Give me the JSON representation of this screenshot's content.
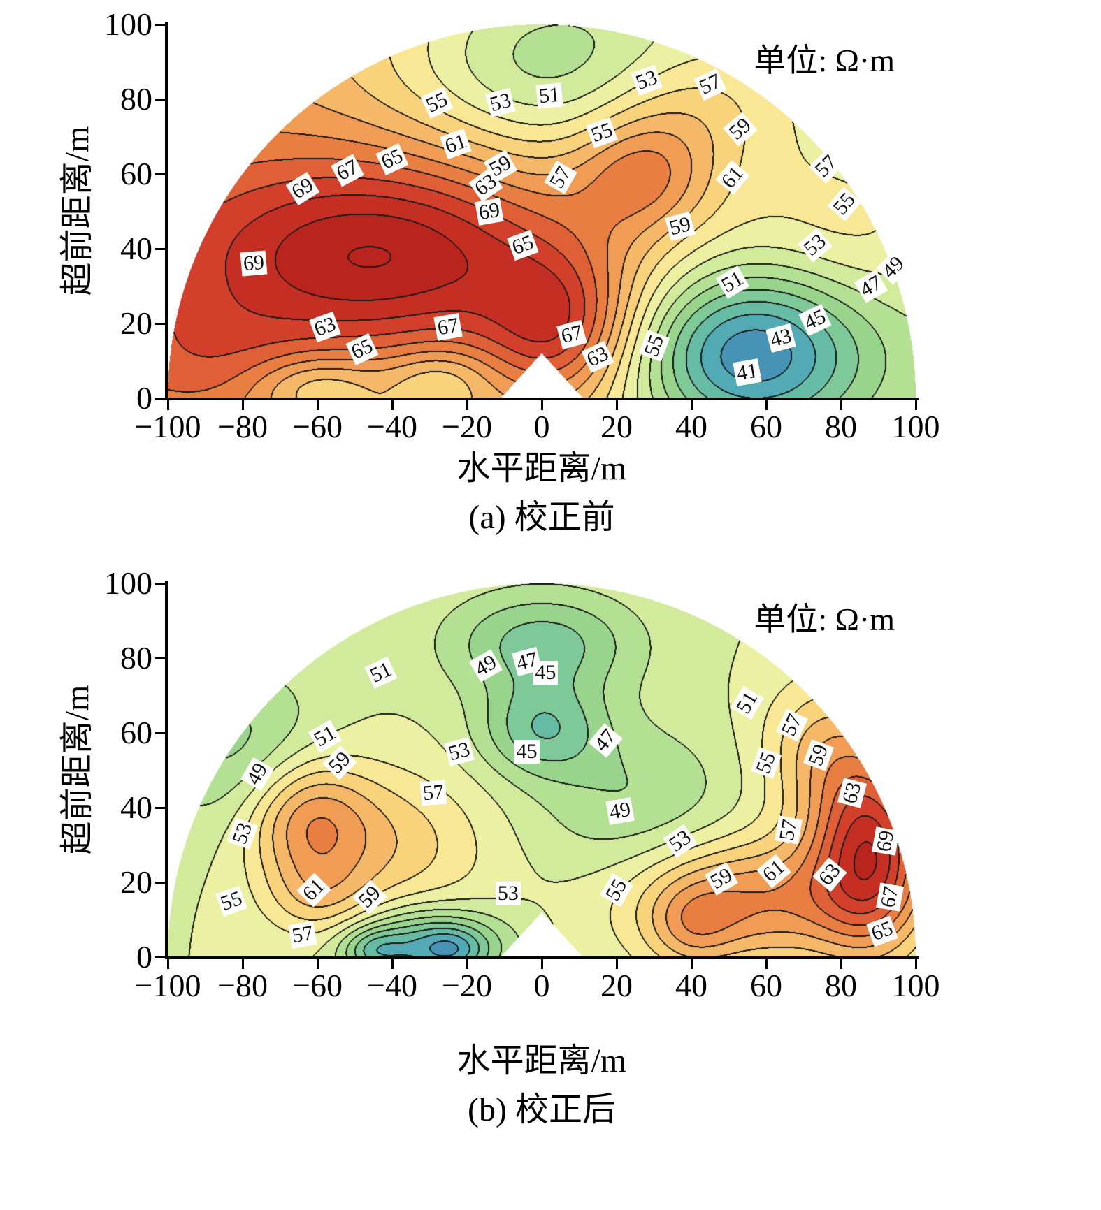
{
  "chart_data": [
    {
      "type": "heatmap",
      "subtype": "filled_contour_semicircle",
      "title": "(a) 校正前",
      "unit_label": "单位: Ω·m",
      "xlabel": "水平距离/m",
      "ylabel": "超前距离/m",
      "xlim": [
        -100,
        100
      ],
      "ylim": [
        0,
        100
      ],
      "x_ticks": [
        {
          "v": -100,
          "label": "−100"
        },
        {
          "v": -80,
          "label": "−80"
        },
        {
          "v": -60,
          "label": "−60"
        },
        {
          "v": -40,
          "label": "−40"
        },
        {
          "v": -20,
          "label": "−20"
        },
        {
          "v": 0,
          "label": "0"
        },
        {
          "v": 20,
          "label": "20"
        },
        {
          "v": 40,
          "label": "40"
        },
        {
          "v": 60,
          "label": "60"
        },
        {
          "v": 80,
          "label": "80"
        },
        {
          "v": 100,
          "label": "100"
        }
      ],
      "y_ticks": [
        {
          "v": 0,
          "label": "0"
        },
        {
          "v": 20,
          "label": "20"
        },
        {
          "v": 40,
          "label": "40"
        },
        {
          "v": 60,
          "label": "60"
        },
        {
          "v": 80,
          "label": "80"
        },
        {
          "v": 100,
          "label": "100"
        }
      ],
      "domain": {
        "shape": "semicircle",
        "radius": 100,
        "notch": {
          "half_width": 11,
          "height": 12
        }
      },
      "contour_interval": 2,
      "value_range": [
        37,
        75
      ],
      "line_color": "#1a1a1a",
      "field": {
        "base": 57,
        "xslope": -0.05,
        "gaussians": [
          [
            -40,
            38,
            40,
            20,
            14
          ],
          [
            0,
            90,
            28,
            18,
            -7
          ],
          [
            27,
            60,
            13,
            11,
            7
          ],
          [
            55,
            12,
            22,
            16,
            -15
          ],
          [
            -60,
            3,
            12,
            6,
            -5
          ],
          [
            -28,
            5,
            10,
            6,
            -4
          ],
          [
            40,
            78,
            18,
            12,
            4
          ],
          [
            -90,
            10,
            18,
            12,
            3
          ],
          [
            85,
            45,
            20,
            15,
            3
          ],
          [
            5,
            18,
            14,
            14,
            9
          ]
        ]
      },
      "colormap": [
        [
          38,
          "#3b7cb8"
        ],
        [
          42,
          "#52aab4"
        ],
        [
          44,
          "#66bba4"
        ],
        [
          46,
          "#7fc897"
        ],
        [
          48,
          "#98d48c"
        ],
        [
          50,
          "#b3e092"
        ],
        [
          52,
          "#d2ea9b"
        ],
        [
          54,
          "#ecf0a2"
        ],
        [
          56,
          "#f8e795"
        ],
        [
          58,
          "#f8d37c"
        ],
        [
          60,
          "#f5b868"
        ],
        [
          62,
          "#f09c54"
        ],
        [
          64,
          "#e97e43"
        ],
        [
          66,
          "#df5f36"
        ],
        [
          68,
          "#d2402b"
        ],
        [
          70,
          "#c52e22"
        ],
        [
          72,
          "#b9241c"
        ]
      ],
      "contour_labels": [
        {
          "v": 55,
          "x": -28,
          "y": 79,
          "rot": -25
        },
        {
          "v": 53,
          "x": -11,
          "y": 79,
          "rot": -15
        },
        {
          "v": 51,
          "x": 2,
          "y": 81,
          "rot": -5
        },
        {
          "v": 53,
          "x": 28,
          "y": 85,
          "rot": -20
        },
        {
          "v": 57,
          "x": 45,
          "y": 84,
          "rot": -25
        },
        {
          "v": 55,
          "x": 16,
          "y": 71,
          "rot": -20
        },
        {
          "v": 59,
          "x": 53,
          "y": 72,
          "rot": -40
        },
        {
          "v": 57,
          "x": 76,
          "y": 62,
          "rot": -45
        },
        {
          "v": 55,
          "x": 81,
          "y": 52,
          "rot": -50
        },
        {
          "v": 61,
          "x": -23,
          "y": 68,
          "rot": -20
        },
        {
          "v": 65,
          "x": -40,
          "y": 64,
          "rot": -25
        },
        {
          "v": 67,
          "x": -52,
          "y": 61,
          "rot": -28
        },
        {
          "v": 69,
          "x": -64,
          "y": 56,
          "rot": -32
        },
        {
          "v": 59,
          "x": -11,
          "y": 62,
          "rot": -30
        },
        {
          "v": 63,
          "x": -15,
          "y": 57,
          "rot": -35
        },
        {
          "v": 57,
          "x": 5,
          "y": 59,
          "rot": -60
        },
        {
          "v": 61,
          "x": 51,
          "y": 59,
          "rot": -50
        },
        {
          "v": 59,
          "x": 37,
          "y": 46,
          "rot": -15
        },
        {
          "v": 53,
          "x": 73,
          "y": 41,
          "rot": -40
        },
        {
          "v": 49,
          "x": 94,
          "y": 35,
          "rot": -45
        },
        {
          "v": 47,
          "x": 88,
          "y": 30,
          "rot": -30
        },
        {
          "v": 69,
          "x": -14,
          "y": 50,
          "rot": -10
        },
        {
          "v": 65,
          "x": -5,
          "y": 41,
          "rot": -20
        },
        {
          "v": 69,
          "x": -77,
          "y": 36,
          "rot": -5
        },
        {
          "v": 51,
          "x": 51,
          "y": 31,
          "rot": -30
        },
        {
          "v": 45,
          "x": 73,
          "y": 21,
          "rot": -25
        },
        {
          "v": 43,
          "x": 64,
          "y": 16,
          "rot": -15
        },
        {
          "v": 41,
          "x": 55,
          "y": 7,
          "rot": -10
        },
        {
          "v": 67,
          "x": -25,
          "y": 19,
          "rot": -10
        },
        {
          "v": 65,
          "x": -48,
          "y": 13,
          "rot": -25
        },
        {
          "v": 63,
          "x": -58,
          "y": 19,
          "rot": -20
        },
        {
          "v": 67,
          "x": 8,
          "y": 17,
          "rot": -15
        },
        {
          "v": 63,
          "x": 15,
          "y": 11,
          "rot": -25
        },
        {
          "v": 55,
          "x": 30,
          "y": 14,
          "rot": -70
        }
      ]
    },
    {
      "type": "heatmap",
      "subtype": "filled_contour_semicircle",
      "title": "(b) 校正后",
      "unit_label": "单位: Ω·m",
      "xlabel": "水平距离/m",
      "ylabel": "超前距离/m",
      "xlim": [
        -100,
        100
      ],
      "ylim": [
        0,
        100
      ],
      "x_ticks": [
        {
          "v": -100,
          "label": "−100"
        },
        {
          "v": -80,
          "label": "−80"
        },
        {
          "v": -60,
          "label": "−60"
        },
        {
          "v": -40,
          "label": "−40"
        },
        {
          "v": -20,
          "label": "−20"
        },
        {
          "v": 0,
          "label": "0"
        },
        {
          "v": 20,
          "label": "20"
        },
        {
          "v": 40,
          "label": "40"
        },
        {
          "v": 60,
          "label": "60"
        },
        {
          "v": 80,
          "label": "80"
        },
        {
          "v": 100,
          "label": "100"
        }
      ],
      "y_ticks": [
        {
          "v": 0,
          "label": "0"
        },
        {
          "v": 20,
          "label": "20"
        },
        {
          "v": 40,
          "label": "40"
        },
        {
          "v": 60,
          "label": "60"
        },
        {
          "v": 80,
          "label": "80"
        },
        {
          "v": 100,
          "label": "100"
        }
      ],
      "domain": {
        "shape": "semicircle",
        "radius": 100,
        "notch": {
          "half_width": 11,
          "height": 12
        }
      },
      "contour_interval": 2,
      "value_range": [
        37,
        75
      ],
      "line_color": "#1a1a1a",
      "field": {
        "base": 53,
        "xslope": 0,
        "gaussians": [
          [
            0,
            84,
            18,
            10,
            -7
          ],
          [
            0,
            61,
            12,
            9,
            -7
          ],
          [
            -63,
            37,
            12,
            12,
            9
          ],
          [
            -40,
            30,
            18,
            14,
            5
          ],
          [
            -80,
            55,
            16,
            16,
            -5
          ],
          [
            -30,
            3,
            14,
            7,
            -10
          ],
          [
            55,
            15,
            22,
            12,
            10
          ],
          [
            88,
            28,
            11,
            18,
            16
          ],
          [
            75,
            55,
            12,
            14,
            6
          ],
          [
            40,
            8,
            8,
            8,
            4
          ],
          [
            25,
            42,
            20,
            15,
            -4
          ],
          [
            -60,
            16,
            10,
            8,
            4
          ],
          [
            -45,
            2,
            6,
            4,
            -5
          ],
          [
            -24,
            2,
            6,
            4,
            -4
          ]
        ]
      },
      "colormap": [
        [
          38,
          "#3b7cb8"
        ],
        [
          42,
          "#52aab4"
        ],
        [
          44,
          "#66bba4"
        ],
        [
          46,
          "#7fc897"
        ],
        [
          48,
          "#98d48c"
        ],
        [
          50,
          "#b3e092"
        ],
        [
          52,
          "#d2ea9b"
        ],
        [
          54,
          "#ecf0a2"
        ],
        [
          56,
          "#f8e795"
        ],
        [
          58,
          "#f8d37c"
        ],
        [
          60,
          "#f5b868"
        ],
        [
          62,
          "#f09c54"
        ],
        [
          64,
          "#e97e43"
        ],
        [
          66,
          "#df5f36"
        ],
        [
          68,
          "#d2402b"
        ],
        [
          70,
          "#c52e22"
        ],
        [
          72,
          "#b9241c"
        ]
      ],
      "contour_labels": [
        {
          "v": 51,
          "x": -43,
          "y": 76,
          "rot": -25
        },
        {
          "v": 49,
          "x": -15,
          "y": 78,
          "rot": -30
        },
        {
          "v": 47,
          "x": -4,
          "y": 79,
          "rot": -15
        },
        {
          "v": 45,
          "x": 1,
          "y": 76,
          "rot": 0
        },
        {
          "v": 51,
          "x": 55,
          "y": 68,
          "rot": -60
        },
        {
          "v": 57,
          "x": 67,
          "y": 62,
          "rot": -65
        },
        {
          "v": 51,
          "x": -58,
          "y": 59,
          "rot": -30
        },
        {
          "v": 59,
          "x": 74,
          "y": 54,
          "rot": -70
        },
        {
          "v": 53,
          "x": -22,
          "y": 55,
          "rot": -15
        },
        {
          "v": 45,
          "x": -4,
          "y": 55,
          "rot": 0
        },
        {
          "v": 47,
          "x": 17,
          "y": 58,
          "rot": -50
        },
        {
          "v": 49,
          "x": -76,
          "y": 49,
          "rot": -60
        },
        {
          "v": 59,
          "x": -54,
          "y": 52,
          "rot": -45
        },
        {
          "v": 55,
          "x": 60,
          "y": 52,
          "rot": -70
        },
        {
          "v": 63,
          "x": 83,
          "y": 44,
          "rot": -75
        },
        {
          "v": 57,
          "x": -29,
          "y": 44,
          "rot": -5
        },
        {
          "v": 49,
          "x": 21,
          "y": 39,
          "rot": -10
        },
        {
          "v": 53,
          "x": 37,
          "y": 31,
          "rot": -35
        },
        {
          "v": 57,
          "x": 66,
          "y": 34,
          "rot": -80
        },
        {
          "v": 53,
          "x": -80,
          "y": 33,
          "rot": -70
        },
        {
          "v": 55,
          "x": -83,
          "y": 15,
          "rot": -20
        },
        {
          "v": 61,
          "x": -61,
          "y": 18,
          "rot": -45
        },
        {
          "v": 59,
          "x": -46,
          "y": 16,
          "rot": -45
        },
        {
          "v": 57,
          "x": -64,
          "y": 6,
          "rot": -10
        },
        {
          "v": 53,
          "x": -9,
          "y": 17,
          "rot": 0
        },
        {
          "v": 55,
          "x": 20,
          "y": 18,
          "rot": -60
        },
        {
          "v": 59,
          "x": 48,
          "y": 21,
          "rot": -30
        },
        {
          "v": 61,
          "x": 62,
          "y": 23,
          "rot": -40
        },
        {
          "v": 63,
          "x": 77,
          "y": 22,
          "rot": -50
        },
        {
          "v": 65,
          "x": 91,
          "y": 7,
          "rot": -20
        },
        {
          "v": 67,
          "x": 93,
          "y": 16,
          "rot": -80
        },
        {
          "v": 69,
          "x": 92,
          "y": 31,
          "rot": -80
        }
      ]
    }
  ]
}
